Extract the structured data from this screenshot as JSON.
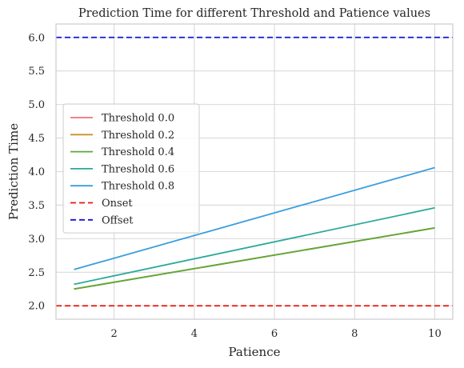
{
  "chart_data": {
    "type": "line",
    "title": "Prediction Time for different Threshold and Patience values",
    "xlabel": "Patience",
    "ylabel": "Prediction Time",
    "xlim": [
      0.55,
      10.45
    ],
    "ylim": [
      1.8,
      6.2
    ],
    "xticks": [
      2,
      4,
      6,
      8,
      10
    ],
    "yticks": [
      2.0,
      2.5,
      3.0,
      3.5,
      4.0,
      4.5,
      5.0,
      5.5,
      6.0
    ],
    "grid": true,
    "legend_position": "center-left",
    "series": [
      {
        "name": "Threshold 0.0",
        "color": "#f0707e",
        "style": "solid",
        "x": [
          1,
          10
        ],
        "y": [
          2.25,
          3.16
        ]
      },
      {
        "name": "Threshold 0.2",
        "color": "#c8902a",
        "style": "solid",
        "x": [
          1,
          10
        ],
        "y": [
          2.25,
          3.16
        ]
      },
      {
        "name": "Threshold 0.4",
        "color": "#5aab3a",
        "style": "solid",
        "x": [
          1,
          10
        ],
        "y": [
          2.25,
          3.16
        ]
      },
      {
        "name": "Threshold 0.6",
        "color": "#2ba99a",
        "style": "solid",
        "x": [
          1,
          10
        ],
        "y": [
          2.32,
          3.46
        ]
      },
      {
        "name": "Threshold 0.8",
        "color": "#3a9ede",
        "style": "solid",
        "x": [
          1,
          10
        ],
        "y": [
          2.54,
          4.06
        ]
      },
      {
        "name": "Onset",
        "color": "#e8140a",
        "style": "dashed",
        "hline": 2.0
      },
      {
        "name": "Offset",
        "color": "#1414d8",
        "style": "dashed",
        "hline": 6.0
      }
    ]
  }
}
